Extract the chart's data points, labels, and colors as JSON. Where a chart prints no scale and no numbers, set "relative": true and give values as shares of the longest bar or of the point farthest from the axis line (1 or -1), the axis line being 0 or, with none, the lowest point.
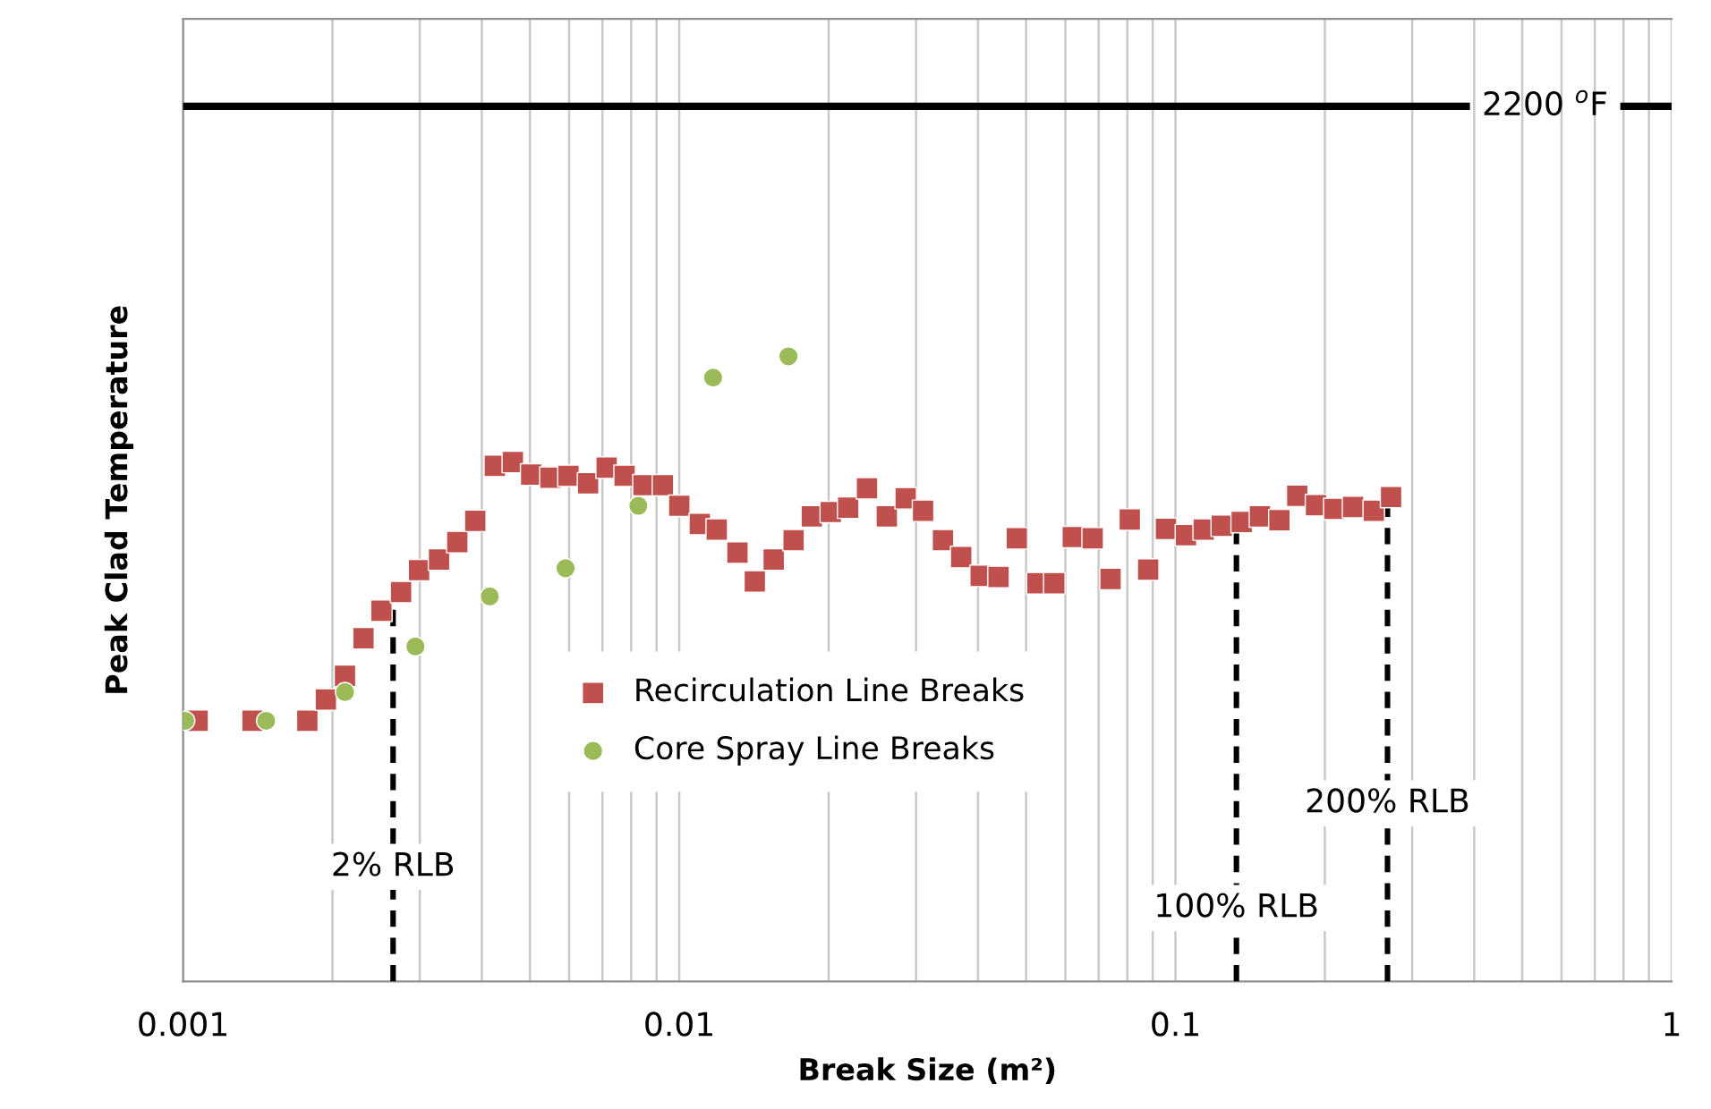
{
  "chart_data": {
    "type": "scatter",
    "relative": true,
    "xlabel": "Break Size (m²)",
    "ylabel": "Peak Clad Temperature",
    "log": "x",
    "xlim": [
      0.001,
      1
    ],
    "xticks": [
      0.001,
      0.01,
      0.1,
      1
    ],
    "grid": "x",
    "legend": "center",
    "tick_labels": "x",
    "series": [
      {
        "name": "Recirculation Line Breaks",
        "color": "#c0504d",
        "marker": "square",
        "x": [
          0.00107,
          0.00138,
          0.00178,
          0.00194,
          0.00212,
          0.00231,
          0.00251,
          0.00275,
          0.00299,
          0.00328,
          0.00357,
          0.00388,
          0.00425,
          0.00462,
          0.00503,
          0.0055,
          0.00598,
          0.00655,
          0.00714,
          0.00776,
          0.00847,
          0.00927,
          0.01,
          0.011,
          0.0119,
          0.0131,
          0.0142,
          0.0155,
          0.017,
          0.0185,
          0.0202,
          0.0219,
          0.0239,
          0.0262,
          0.0286,
          0.031,
          0.034,
          0.037,
          0.0405,
          0.044,
          0.0479,
          0.0527,
          0.057,
          0.0621,
          0.0681,
          0.074,
          0.0809,
          0.0881,
          0.0957,
          0.105,
          0.114,
          0.124,
          0.136,
          0.148,
          0.162,
          0.176,
          0.192,
          0.209,
          0.228,
          0.251,
          0.272
        ],
        "values": [
          0.417,
          0.417,
          0.417,
          0.451,
          0.489,
          0.549,
          0.593,
          0.623,
          0.658,
          0.675,
          0.703,
          0.737,
          0.825,
          0.831,
          0.811,
          0.806,
          0.809,
          0.797,
          0.822,
          0.809,
          0.794,
          0.794,
          0.761,
          0.732,
          0.723,
          0.686,
          0.64,
          0.675,
          0.706,
          0.744,
          0.751,
          0.758,
          0.789,
          0.744,
          0.773,
          0.753,
          0.706,
          0.679,
          0.649,
          0.647,
          0.709,
          0.637,
          0.637,
          0.711,
          0.709,
          0.644,
          0.739,
          0.659,
          0.724,
          0.714,
          0.723,
          0.729,
          0.735,
          0.744,
          0.738,
          0.777,
          0.762,
          0.756,
          0.759,
          0.753,
          0.775
        ]
      },
      {
        "name": "Core Spray Line Breaks",
        "color": "#9bbb59",
        "marker": "circle",
        "x": [
          0.00101,
          0.00147,
          0.00212,
          0.00294,
          0.00415,
          0.0059,
          0.00827,
          0.0117,
          0.0166
        ],
        "values": [
          0.417,
          0.417,
          0.463,
          0.536,
          0.616,
          0.661,
          0.761,
          0.966,
          1
        ]
      }
    ],
    "ref_lines": [
      {
        "axis": "y",
        "value": 1.4,
        "label": "2200 $^{o}$F",
        "color": "#000000",
        "line_style": "solid"
      },
      {
        "axis": "x",
        "value": 0.00265,
        "label": "2% RLB",
        "color": "#000000",
        "line_style": "dashed"
      },
      {
        "axis": "x",
        "value": 0.1327,
        "label": "100% RLB",
        "color": "#000000",
        "line_style": "dashed"
      },
      {
        "axis": "x",
        "value": 0.2675,
        "label": "200% RLB",
        "color": "#000000",
        "line_style": "dashed"
      }
    ]
  }
}
